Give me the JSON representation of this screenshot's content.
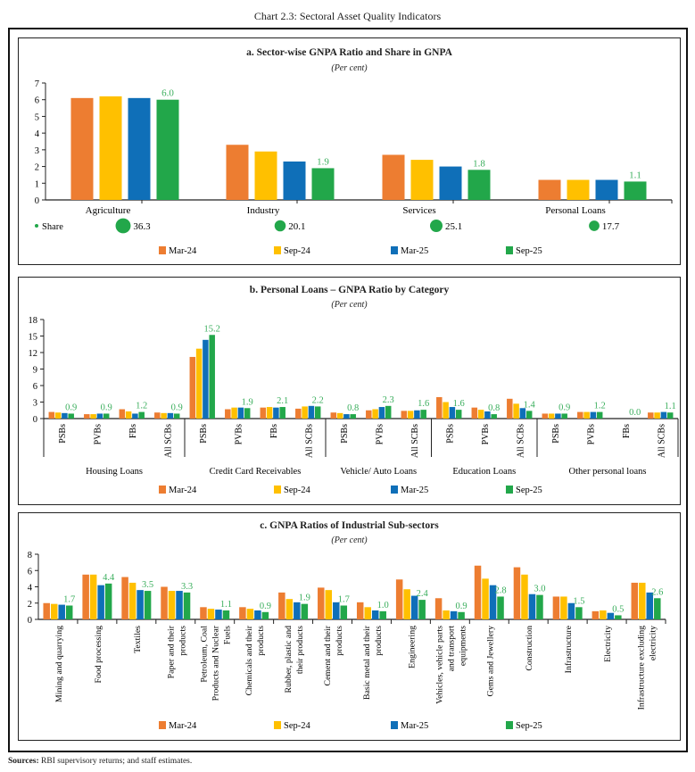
{
  "title": "Chart 2.3: Sectoral Asset Quality Indicators",
  "sources_label": "Sources:",
  "sources_text": " RBI supervisory returns; and staff estimates.",
  "legend": [
    "Mar-24",
    "Sep-24",
    "Mar-25",
    "Sep-25"
  ],
  "colors": {
    "Mar-24": "#ED7D31",
    "Sep-24": "#FFC000",
    "Mar-25": "#0F6FB8",
    "Sep-25": "#22A74A",
    "label": "#3AAE5C"
  },
  "chart_data": [
    {
      "type": "bar",
      "title": "a. Sector-wise GNPA Ratio and Share in GNPA",
      "subtitle": "(Per cent)",
      "ylim": [
        0,
        7
      ],
      "yticks": [
        0,
        1,
        2,
        3,
        4,
        5,
        6,
        7
      ],
      "categories": [
        "Agriculture",
        "Industry",
        "Services",
        "Personal Loans"
      ],
      "series": [
        {
          "name": "Mar-24",
          "values": [
            6.1,
            3.3,
            2.7,
            1.2
          ]
        },
        {
          "name": "Sep-24",
          "values": [
            6.2,
            2.9,
            2.4,
            1.2
          ]
        },
        {
          "name": "Mar-25",
          "values": [
            6.1,
            2.3,
            2.0,
            1.2
          ]
        },
        {
          "name": "Sep-25",
          "values": [
            6.0,
            1.9,
            1.8,
            1.1
          ]
        }
      ],
      "data_labels": [
        "6.0",
        "1.9",
        "1.8",
        "1.1"
      ],
      "share": {
        "name": "Share",
        "values": [
          36.3,
          20.1,
          25.1,
          17.7
        ],
        "labels": [
          "36.3",
          "20.1",
          "25.1",
          "17.7"
        ]
      },
      "legend_position": "bottom"
    },
    {
      "type": "bar",
      "title": "b. Personal Loans – GNPA Ratio by Category",
      "subtitle": "(Per cent)",
      "ylim": [
        0,
        18
      ],
      "yticks": [
        0,
        3,
        6,
        9,
        12,
        15,
        18
      ],
      "groups": [
        {
          "name": "Housing Loans",
          "categories": [
            "PSBs",
            "PVBs",
            "FBs",
            "All SCBs"
          ]
        },
        {
          "name": "Credit Card Receivables",
          "categories": [
            "PSBs",
            "PVBs",
            "FBs",
            "All SCBs"
          ]
        },
        {
          "name": "Vehicle/ Auto Loans",
          "categories": [
            "PSBs",
            "PVBs",
            "All SCBs"
          ]
        },
        {
          "name": "Education Loans",
          "categories": [
            "PSBs",
            "PVBs",
            "All SCBs"
          ]
        },
        {
          "name": "Other personal loans",
          "categories": [
            "PSBs",
            "PVBs",
            "FBs",
            "All SCBs"
          ]
        }
      ],
      "series": [
        {
          "name": "Mar-24",
          "values": [
            1.2,
            0.8,
            1.7,
            1.1,
            11.2,
            1.7,
            2.0,
            1.8,
            1.1,
            1.5,
            1.4,
            3.9,
            2.0,
            3.6,
            0.9,
            1.2,
            0.0,
            1.1
          ]
        },
        {
          "name": "Sep-24",
          "values": [
            1.1,
            0.8,
            1.3,
            1.0,
            12.7,
            2.0,
            2.1,
            2.2,
            1.0,
            1.7,
            1.4,
            3.0,
            1.6,
            2.7,
            0.9,
            1.2,
            0.0,
            1.1
          ]
        },
        {
          "name": "Mar-25",
          "values": [
            1.0,
            0.9,
            0.9,
            1.0,
            14.3,
            2.0,
            2.0,
            2.3,
            0.8,
            2.1,
            1.5,
            2.1,
            1.3,
            1.9,
            0.9,
            1.2,
            0.0,
            1.2
          ]
        },
        {
          "name": "Sep-25",
          "values": [
            0.9,
            0.9,
            1.2,
            0.9,
            15.2,
            1.9,
            2.1,
            2.2,
            0.8,
            2.3,
            1.6,
            1.6,
            0.8,
            1.4,
            0.9,
            1.2,
            0.0,
            1.1
          ]
        }
      ],
      "data_labels": [
        "0.9",
        "0.9",
        "1.2",
        "0.9",
        "15.2",
        "1.9",
        "2.1",
        "2.2",
        "0.8",
        "2.3",
        "1.6",
        "1.6",
        "0.8",
        "1.4",
        "0.9",
        "1.2",
        "0.0",
        "1.1"
      ],
      "legend_position": "bottom"
    },
    {
      "type": "bar",
      "title": "c. GNPA Ratios of Industrial Sub-sectors",
      "subtitle": "(Per cent)",
      "ylim": [
        0,
        8
      ],
      "yticks": [
        0,
        2,
        4,
        6,
        8
      ],
      "categories": [
        [
          "Mining and quarrying"
        ],
        [
          "Food processing"
        ],
        [
          "Textiles"
        ],
        [
          "Paper and their",
          "products"
        ],
        [
          "Petroleum, Coal",
          "Products  and Nuclear",
          "Fuels"
        ],
        [
          "Chemicals and their",
          "products"
        ],
        [
          "Rubber, plastic and",
          "their products"
        ],
        [
          "Cement and their",
          "products"
        ],
        [
          "Basic metal and their",
          "products"
        ],
        [
          "Engineering"
        ],
        [
          "Vehicles, vehicle parts",
          "and transport",
          "equipments"
        ],
        [
          "Gems and Jewellery"
        ],
        [
          "Construction"
        ],
        [
          "Infrastructure"
        ],
        [
          "Electricity"
        ],
        [
          "Infrastructure excluding",
          "electricity"
        ]
      ],
      "series": [
        {
          "name": "Mar-24",
          "values": [
            2.0,
            5.5,
            5.2,
            4.0,
            1.5,
            1.5,
            3.3,
            3.9,
            2.1,
            4.9,
            2.6,
            6.6,
            6.4,
            2.8,
            1.0,
            4.5
          ]
        },
        {
          "name": "Sep-24",
          "values": [
            1.9,
            5.5,
            4.5,
            3.5,
            1.3,
            1.3,
            2.5,
            3.6,
            1.5,
            3.7,
            1.1,
            5.0,
            5.5,
            2.8,
            1.1,
            4.5
          ]
        },
        {
          "name": "Mar-25",
          "values": [
            1.8,
            4.2,
            3.6,
            3.5,
            1.2,
            1.1,
            2.1,
            2.1,
            1.1,
            2.9,
            1.0,
            4.2,
            3.1,
            2.0,
            0.8,
            3.3
          ]
        },
        {
          "name": "Sep-25",
          "values": [
            1.7,
            4.4,
            3.5,
            3.3,
            1.1,
            0.9,
            1.9,
            1.7,
            1.0,
            2.4,
            0.9,
            2.8,
            3.0,
            1.5,
            0.5,
            2.6
          ]
        }
      ],
      "data_labels": [
        "1.7",
        "4.4",
        "3.5",
        "3.3",
        "1.1",
        "0.9",
        "1.9",
        "1.7",
        "1.0",
        "2.4",
        "0.9",
        "2.8",
        "3.0",
        "1.5",
        "0.5",
        "2.6"
      ],
      "legend_position": "bottom"
    }
  ]
}
